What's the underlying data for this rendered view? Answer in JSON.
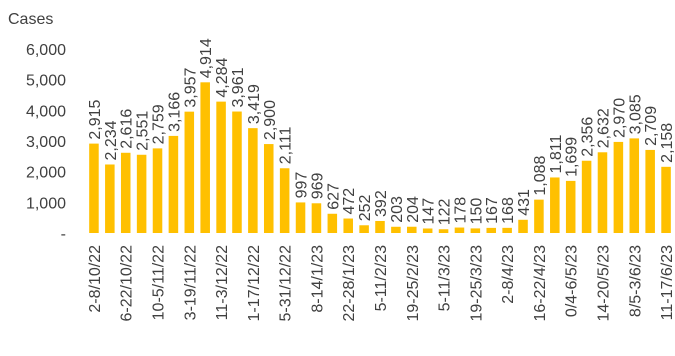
{
  "chart_data": {
    "type": "bar",
    "ylabel": "Cases",
    "categories": [
      "2-8/10/22",
      null,
      "6-22/10/22",
      null,
      "10-5/11/22",
      null,
      "3-19/11/22",
      null,
      "11-3/12/22",
      null,
      "1-17/12/22",
      null,
      "5-31/12/22",
      null,
      "8-14/1/23",
      null,
      "22-28/1/23",
      null,
      "5-11/2/23",
      null,
      "19-25/2/23",
      null,
      "5-11/3/23",
      null,
      "19-25/3/23",
      null,
      "2-8/4/23",
      null,
      "16-22/4/23",
      null,
      "0/4-6/5/23",
      null,
      "14-20/5/23",
      null,
      "8/5-3/6/23",
      null,
      "11-17/6/23"
    ],
    "values": [
      2915,
      2234,
      2616,
      2551,
      2759,
      3166,
      3957,
      4914,
      4284,
      3961,
      3419,
      2900,
      2111,
      997,
      969,
      627,
      472,
      252,
      392,
      203,
      204,
      147,
      122,
      178,
      150,
      167,
      168,
      431,
      1088,
      1811,
      1699,
      2356,
      2632,
      2970,
      3085,
      2709,
      2158
    ],
    "value_labels": [
      "2,915",
      "2,234",
      "2,616",
      "2,551",
      "2,759",
      "3,166",
      "3,957",
      "4,914",
      "4,284",
      "3,961",
      "3,419",
      "2,900",
      "2,111",
      "997",
      "969",
      "627",
      "472",
      "252",
      "392",
      "203",
      "204",
      "147",
      "122",
      "178",
      "150",
      "167",
      "168",
      "431",
      "1,088",
      "1,811",
      "1,699",
      "2,356",
      "2,632",
      "2,970",
      "3,085",
      "2,709",
      "2,158"
    ],
    "color": "#ffc000",
    "ylim": [
      0,
      6000
    ],
    "yticks": [
      {
        "value": 0,
        "label": "-"
      },
      {
        "value": 1000,
        "label": "1,000"
      },
      {
        "value": 2000,
        "label": "2,000"
      },
      {
        "value": 3000,
        "label": "3,000"
      },
      {
        "value": 4000,
        "label": "4,000"
      },
      {
        "value": 5000,
        "label": "5,000"
      },
      {
        "value": 6000,
        "label": "6,000"
      }
    ]
  }
}
